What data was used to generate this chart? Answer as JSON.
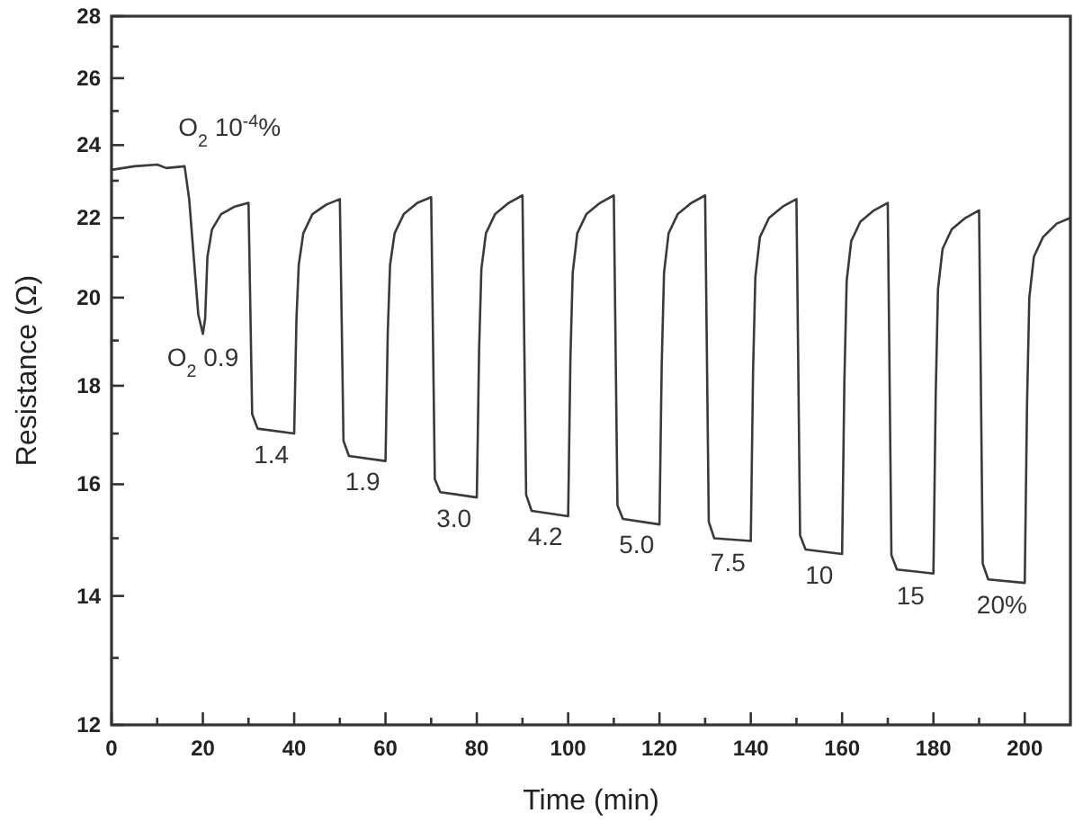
{
  "chart_data": {
    "type": "line",
    "xlabel": "Time (min)",
    "ylabel": "Resistance (Ω)",
    "log": "y",
    "xlim": [
      0,
      210
    ],
    "ylim": [
      12,
      28
    ],
    "xticks": [
      0,
      {
        "value": 10,
        "label": null
      },
      20,
      {
        "value": 30,
        "label": null
      },
      40,
      {
        "value": 50,
        "label": null
      },
      60,
      {
        "value": 70,
        "label": null
      },
      80,
      {
        "value": 90,
        "label": null
      },
      100,
      {
        "value": 110,
        "label": null
      },
      120,
      {
        "value": 130,
        "label": null
      },
      140,
      {
        "value": 150,
        "label": null
      },
      160,
      {
        "value": 170,
        "label": null
      },
      180,
      {
        "value": 190,
        "label": null
      },
      200
    ],
    "yticks": [
      12,
      {
        "value": 13,
        "label": null
      },
      14,
      {
        "value": 15,
        "label": null
      },
      16,
      {
        "value": 17,
        "label": null
      },
      18,
      {
        "value": 19,
        "label": null
      },
      20,
      {
        "value": 21,
        "label": null
      },
      22,
      {
        "value": 23,
        "label": null
      },
      24,
      {
        "value": 25,
        "label": null
      },
      26,
      {
        "value": 27,
        "label": null
      },
      28
    ],
    "grid": false,
    "marker": "none",
    "line_style": "solid",
    "series": [
      {
        "color": "#3a3a3a",
        "x": [
          0,
          5,
          10,
          12,
          16,
          17,
          18,
          19,
          20,
          20.5,
          21,
          22,
          24,
          27,
          30,
          30.8,
          32,
          40,
          40.5,
          41,
          42,
          44,
          47,
          50,
          50.8,
          52,
          60,
          60.5,
          61,
          62,
          64,
          67,
          70,
          70.8,
          72,
          80,
          80.5,
          81,
          82,
          84,
          87,
          90,
          90.8,
          92,
          100,
          100.5,
          101,
          102,
          104,
          107,
          110,
          110.8,
          112,
          120,
          120.5,
          121,
          122,
          124,
          127,
          130,
          130.8,
          132,
          140,
          140.5,
          141,
          142,
          144,
          147,
          150,
          150.8,
          152,
          160,
          160.5,
          161,
          162,
          164,
          167,
          170,
          170.8,
          172,
          180,
          180.5,
          181,
          182,
          184,
          187,
          190,
          190.8,
          192,
          200,
          200.5,
          201,
          202,
          204,
          207,
          210
        ],
        "values": [
          23.3,
          23.4,
          23.45,
          23.35,
          23.4,
          22.5,
          21,
          19.6,
          19.15,
          19.5,
          21,
          21.7,
          22.1,
          22.3,
          22.4,
          17.4,
          17.1,
          17.0,
          19.5,
          20.8,
          21.6,
          22.1,
          22.35,
          22.5,
          16.85,
          16.55,
          16.45,
          19.2,
          20.8,
          21.6,
          22.1,
          22.4,
          22.55,
          16.1,
          15.85,
          15.75,
          18.8,
          20.7,
          21.6,
          22.1,
          22.4,
          22.6,
          15.8,
          15.5,
          15.4,
          18.6,
          20.6,
          21.6,
          22.1,
          22.4,
          22.6,
          15.6,
          15.35,
          15.25,
          18.5,
          20.6,
          21.6,
          22.1,
          22.4,
          22.6,
          15.3,
          15.0,
          14.95,
          18.3,
          20.5,
          21.5,
          22.0,
          22.3,
          22.5,
          15.05,
          14.8,
          14.72,
          18.1,
          20.4,
          21.4,
          21.9,
          22.2,
          22.4,
          14.7,
          14.45,
          14.38,
          17.8,
          20.2,
          21.2,
          21.7,
          22.0,
          22.2,
          14.55,
          14.28,
          14.22,
          17.6,
          20.0,
          21.0,
          21.5,
          21.85,
          22.0
        ]
      }
    ],
    "annotations": [
      {
        "text": "O$_{2}$ 10$^{-4}$%",
        "x": 16,
        "y": 23.4
      },
      {
        "text": "O$_{2}$ 0.9",
        "x": 20,
        "y": 19.15
      },
      {
        "text": "1.4",
        "x": 35,
        "y": 17.06
      },
      {
        "text": "1.9",
        "x": 55,
        "y": 16.51
      },
      {
        "text": "3.0",
        "x": 75,
        "y": 15.81
      },
      {
        "text": "4.2",
        "x": 95,
        "y": 15.46
      },
      {
        "text": "5.0",
        "x": 115,
        "y": 15.31
      },
      {
        "text": "7.5",
        "x": 135,
        "y": 14.99
      },
      {
        "text": "10",
        "x": 155,
        "y": 14.76
      },
      {
        "text": "15",
        "x": 175,
        "y": 14.41
      },
      {
        "text": "20%",
        "x": 195,
        "y": 14.26
      }
    ]
  }
}
